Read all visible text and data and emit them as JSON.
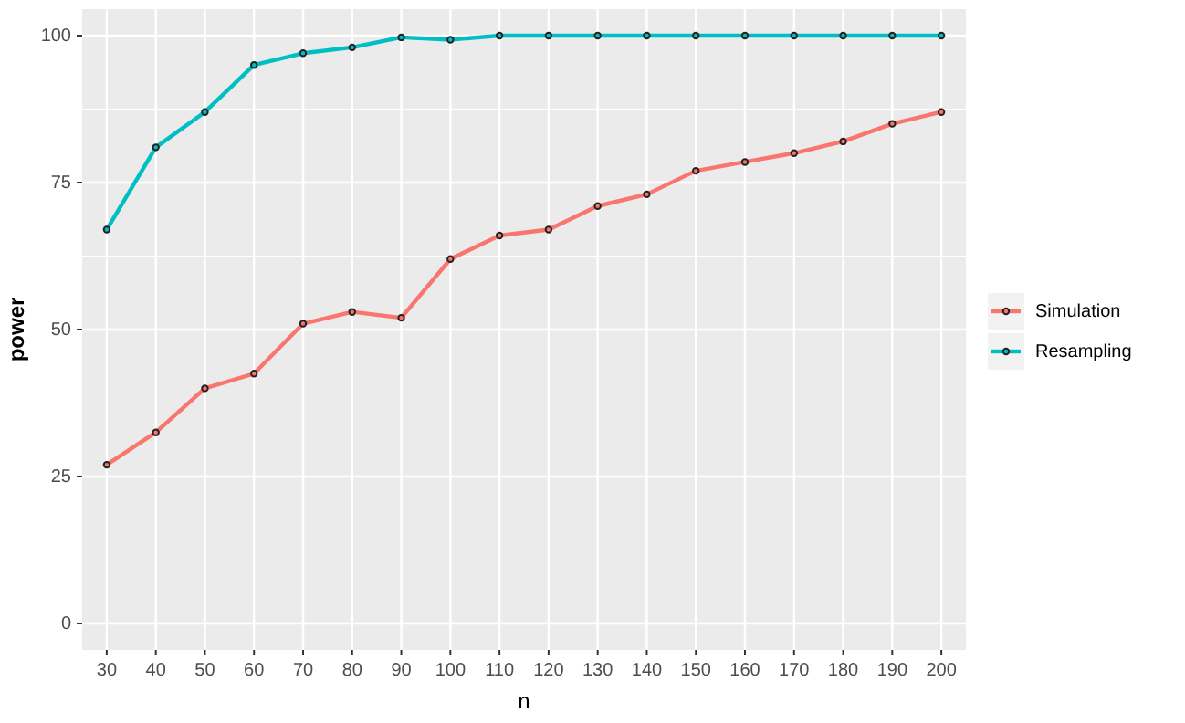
{
  "chart_data": {
    "type": "line",
    "xlabel": "n",
    "ylabel": "power",
    "categories": [
      "30",
      "40",
      "50",
      "60",
      "70",
      "80",
      "90",
      "100",
      "110",
      "120",
      "130",
      "140",
      "150",
      "160",
      "170",
      "180",
      "190",
      "200"
    ],
    "series": [
      {
        "name": "Simulation",
        "color": "#f8766d",
        "values": [
          27,
          32.5,
          40,
          42.5,
          51,
          53,
          52,
          62,
          66,
          67,
          71,
          73,
          77,
          78.5,
          80,
          82,
          85,
          87
        ]
      },
      {
        "name": "Resampling",
        "color": "#00bfc4",
        "values": [
          67,
          81,
          87,
          95,
          97,
          98,
          99.7,
          99.3,
          100,
          100,
          100,
          100,
          100,
          100,
          100,
          100,
          100,
          100
        ]
      }
    ],
    "ylim": [
      -4.5,
      104.5
    ],
    "yticks": [
      0,
      25,
      50,
      75,
      100
    ],
    "grid": true,
    "legend": "right",
    "marker": "circle",
    "line_style": "solid"
  }
}
